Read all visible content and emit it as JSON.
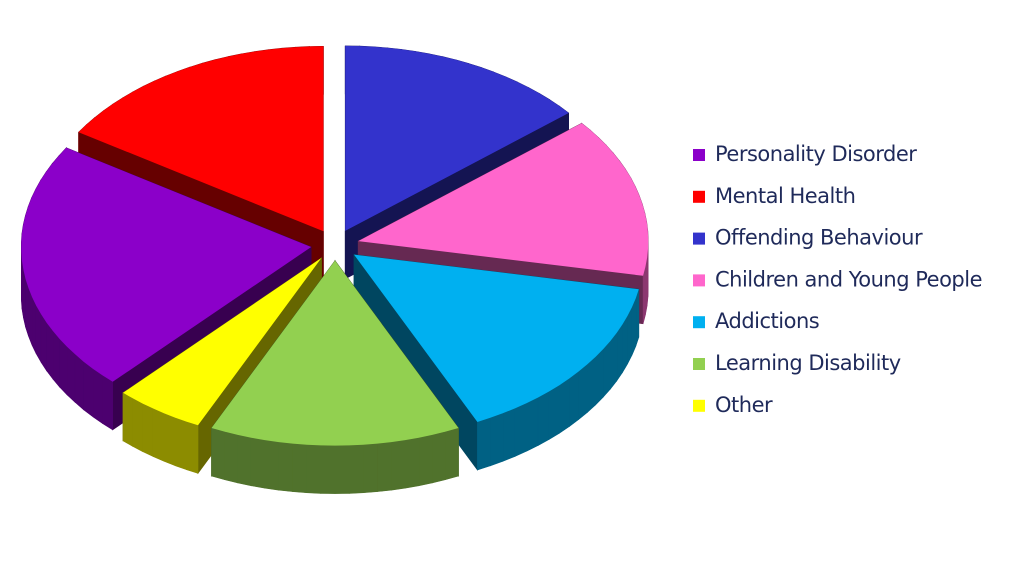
{
  "chart_data": {
    "type": "pie",
    "categories": [
      "Personality Disorder",
      "Mental Health",
      "Offending Behaviour",
      "Children and Young People",
      "Addictions",
      "Learning Disability",
      "Other"
    ],
    "values": [
      22,
      16,
      14,
      14,
      15,
      14,
      5
    ],
    "colors": [
      "#8b00c9",
      "#ff0000",
      "#3333cc",
      "#ff66cc",
      "#00b0f0",
      "#92d050",
      "#ffff00"
    ],
    "legend": "right"
  }
}
